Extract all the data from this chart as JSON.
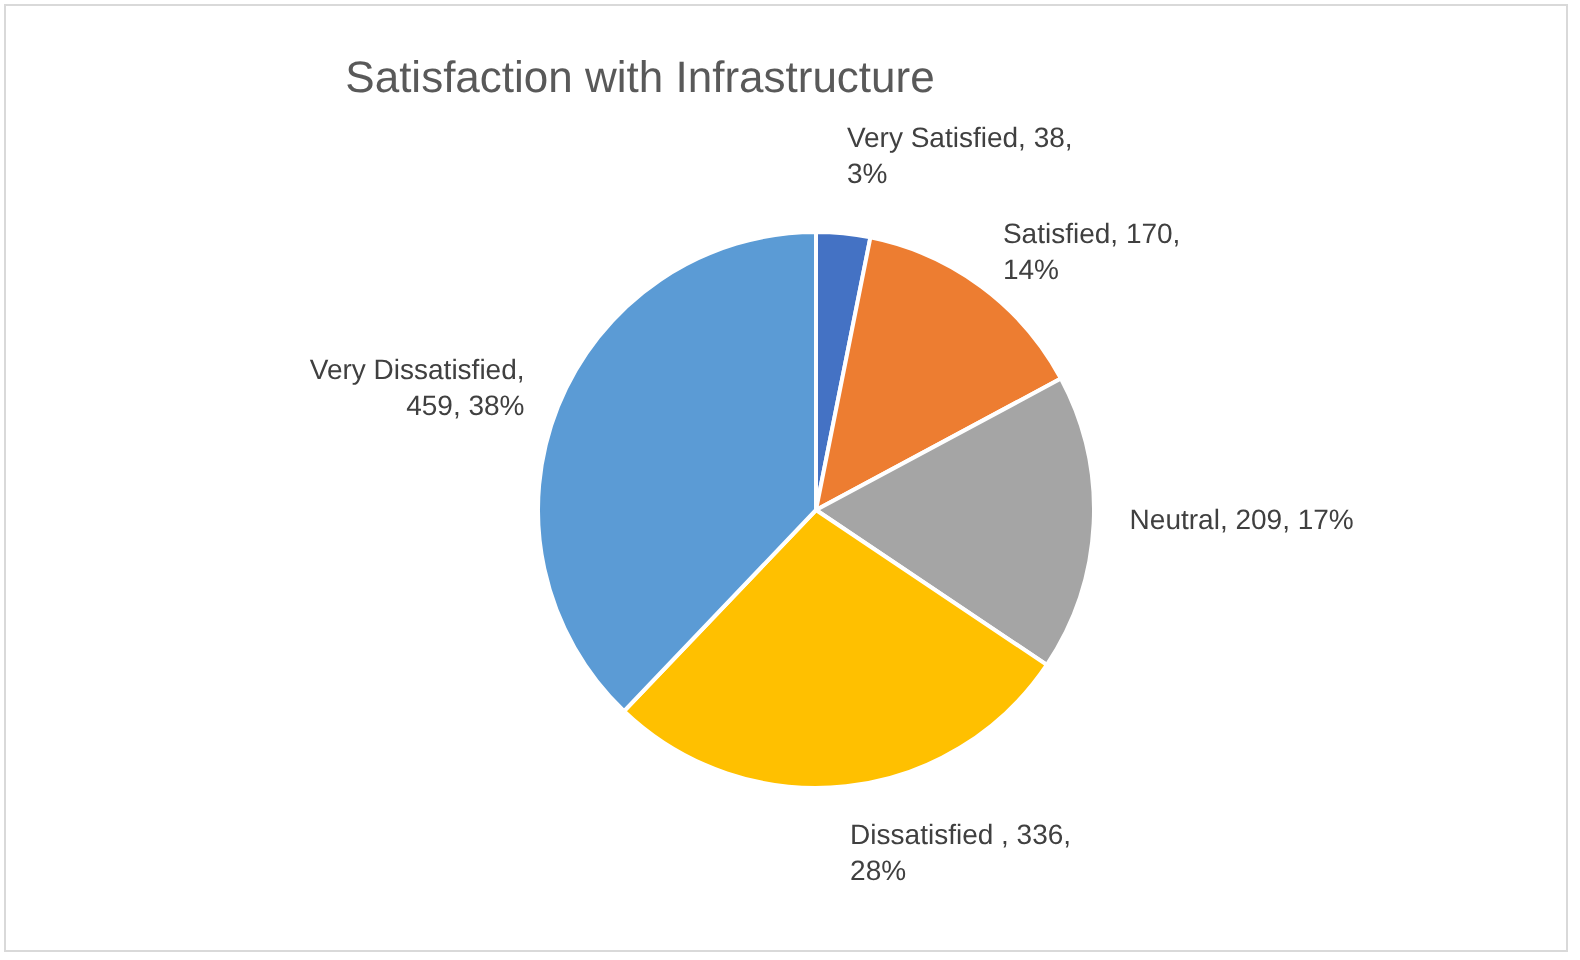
{
  "chart_data": {
    "type": "pie",
    "title": "Satisfaction with Infrastructure",
    "categories": [
      "Very Satisfied",
      "Satisfied",
      "Neutral",
      "Dissatisfied",
      "Very Dissatisfied"
    ],
    "values": [
      38,
      170,
      209,
      336,
      459
    ],
    "colors": [
      "#4472c4",
      "#ed7d31",
      "#a5a5a5",
      "#ffc000",
      "#5b9bd5"
    ],
    "value_labels": [
      ", 38, 3%",
      ", 170, 14%",
      ", 209, 17%",
      " , 336, 28%",
      ", 459, 38%"
    ],
    "legend": false
  }
}
